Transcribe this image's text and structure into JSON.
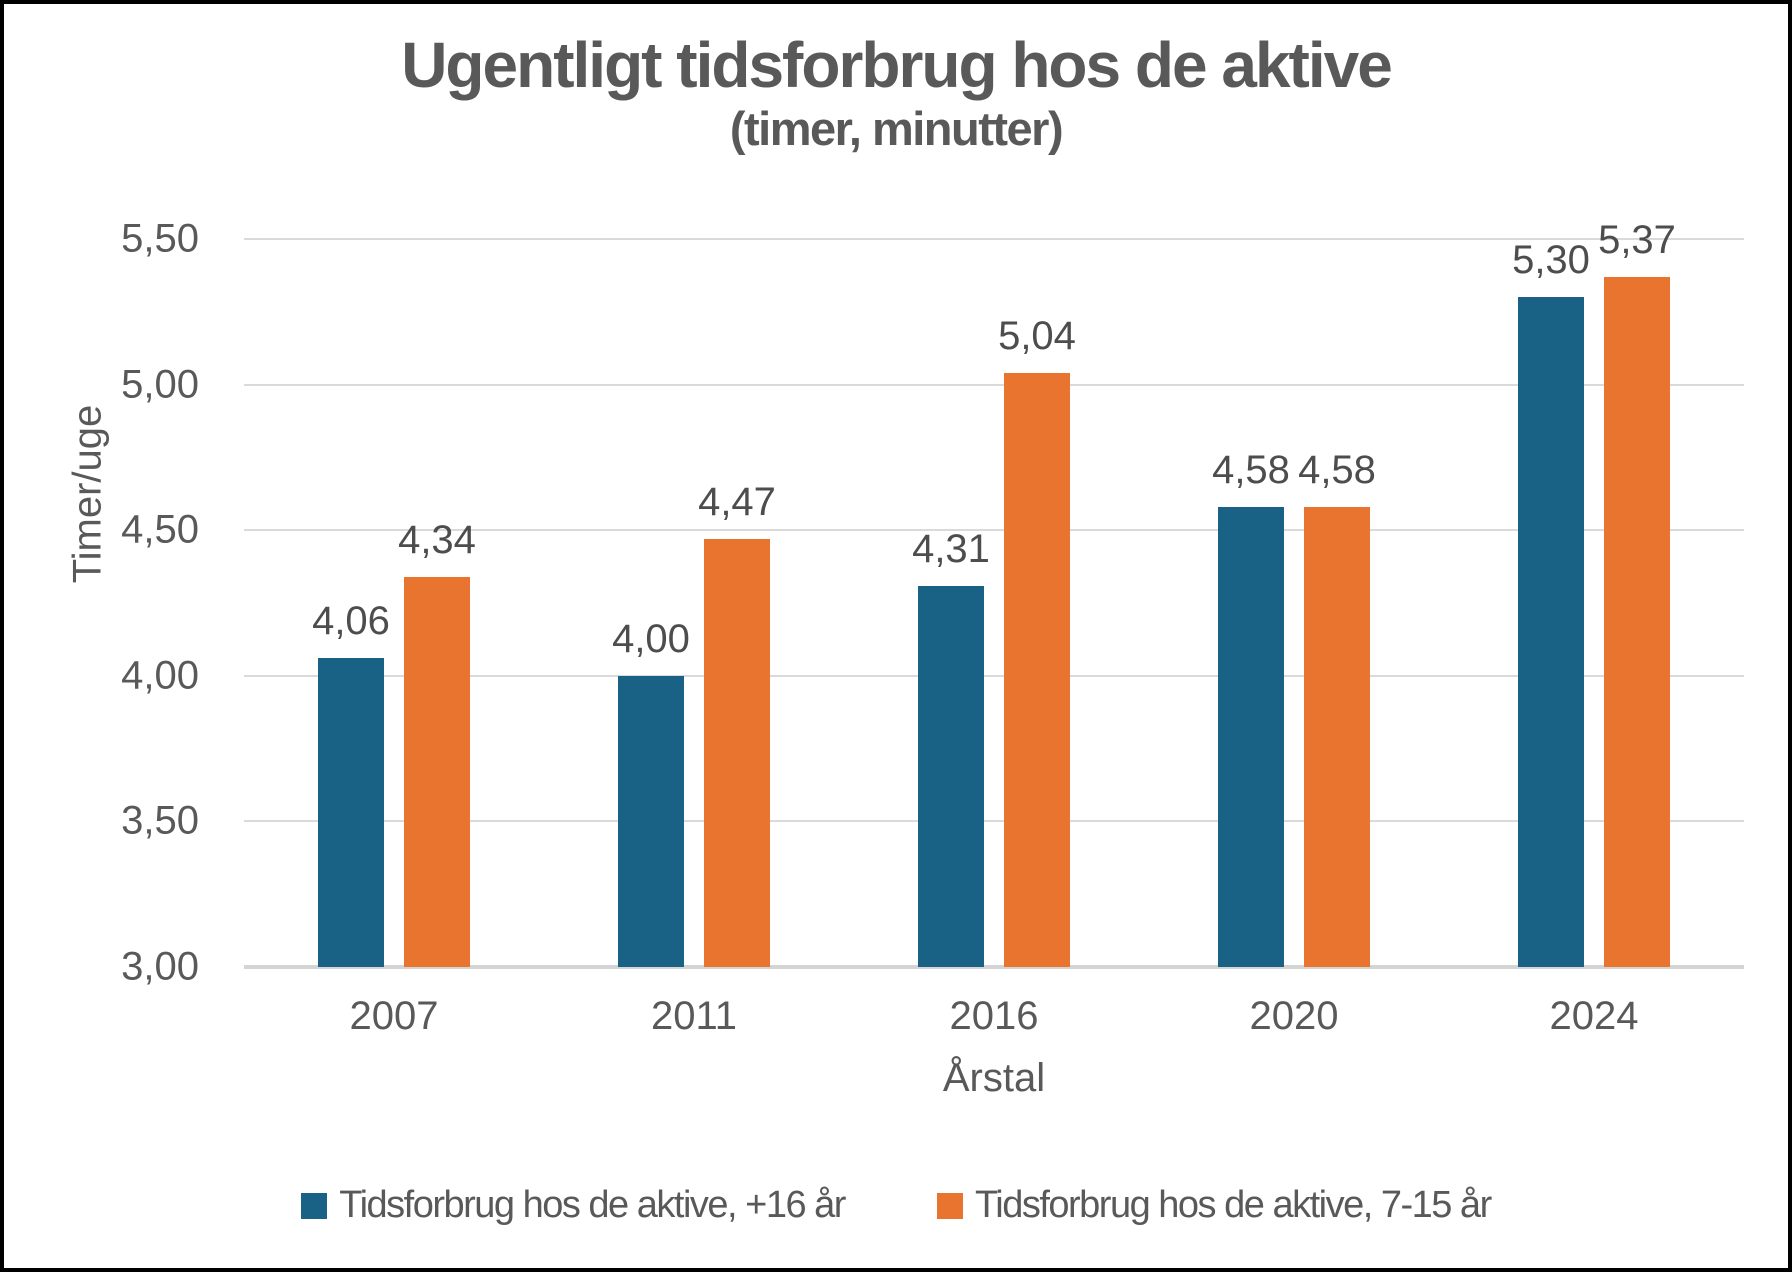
{
  "title": "Ugentligt tidsforbrug hos de aktive",
  "subtitle": "(timer, minutter)",
  "chart_data": {
    "type": "bar",
    "title": "Ugentligt tidsforbrug hos de aktive",
    "subtitle": "(timer, minutter)",
    "xlabel": "Årstal",
    "ylabel": "Timer/uge",
    "ylim": [
      3.0,
      5.5
    ],
    "grid": true,
    "legend_position": "bottom",
    "categories": [
      "2007",
      "2011",
      "2016",
      "2020",
      "2024"
    ],
    "yticks": [
      {
        "value": 3.0,
        "label": "3,00"
      },
      {
        "value": 3.5,
        "label": "3,50"
      },
      {
        "value": 4.0,
        "label": "4,00"
      },
      {
        "value": 4.5,
        "label": "4,50"
      },
      {
        "value": 5.0,
        "label": "5,00"
      },
      {
        "value": 5.5,
        "label": "5,50"
      }
    ],
    "series": [
      {
        "name": "Tidsforbrug hos de aktive, +16 år",
        "color": "#1A6285",
        "values": [
          4.06,
          4.0,
          4.31,
          4.58,
          5.3
        ],
        "labels": [
          "4,06",
          "4,00",
          "4,31",
          "4,58",
          "5,30"
        ]
      },
      {
        "name": "Tidsforbrug hos de aktive, 7-15 år",
        "color": "#E8742F",
        "values": [
          4.34,
          4.47,
          5.04,
          4.58,
          5.37
        ],
        "labels": [
          "4,34",
          "4,47",
          "5,04",
          "4,58",
          "5,37"
        ]
      }
    ]
  },
  "colors": {
    "grid": "#DADADA",
    "baseline": "#D4D4D4",
    "axis_text": "#595959",
    "data_label_text": "#4d4d4d",
    "title_text": "#595959",
    "frame_border": "#000000",
    "background": "#FFFFFF"
  }
}
